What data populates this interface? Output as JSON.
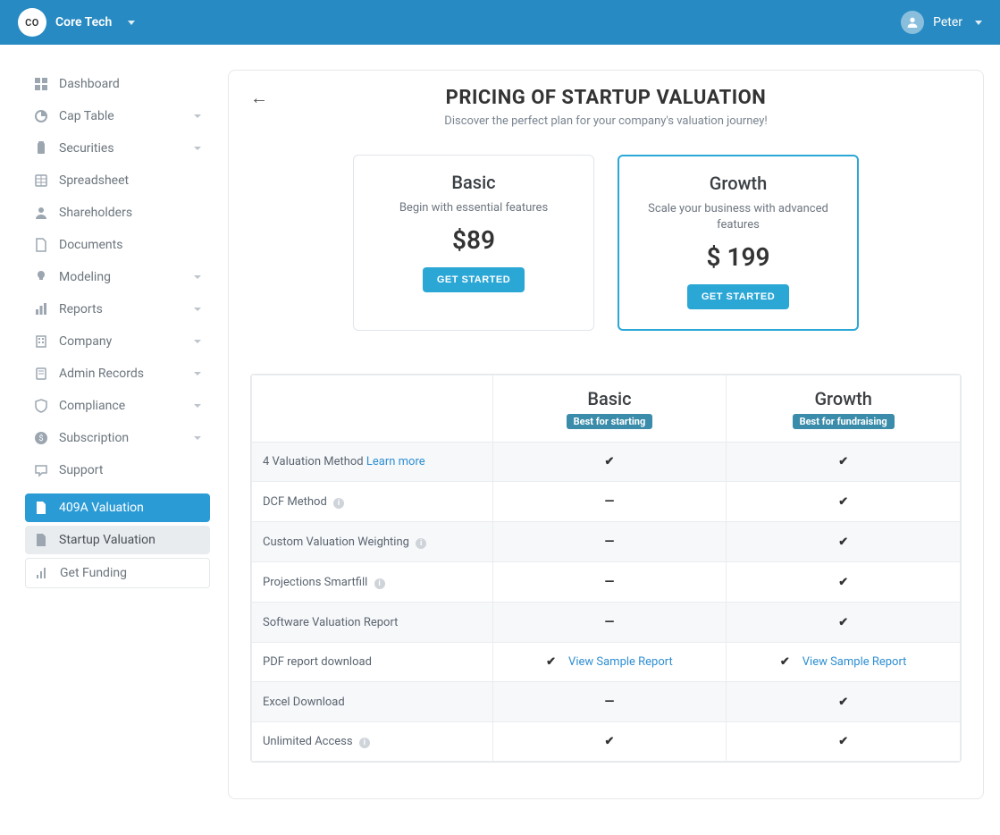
{
  "colors": {
    "topbar_bg": "#288ac2",
    "accent": "#2ba7d6",
    "text_muted": "#7a8590",
    "border": "#e5e8eb",
    "badge_bg": "#3a8caa",
    "link": "#2f8fd2"
  },
  "topbar": {
    "org_initials": "CO",
    "org_name": "Core Tech",
    "user_name": "Peter"
  },
  "sidebar": {
    "items": [
      {
        "key": "dashboard",
        "label": "Dashboard",
        "expandable": false
      },
      {
        "key": "cap-table",
        "label": "Cap Table",
        "expandable": true
      },
      {
        "key": "securities",
        "label": "Securities",
        "expandable": true
      },
      {
        "key": "spreadsheet",
        "label": "Spreadsheet",
        "expandable": false
      },
      {
        "key": "shareholders",
        "label": "Shareholders",
        "expandable": false
      },
      {
        "key": "documents",
        "label": "Documents",
        "expandable": false
      },
      {
        "key": "modeling",
        "label": "Modeling",
        "expandable": true
      },
      {
        "key": "reports",
        "label": "Reports",
        "expandable": true
      },
      {
        "key": "company",
        "label": "Company",
        "expandable": true
      },
      {
        "key": "admin-records",
        "label": "Admin Records",
        "expandable": true
      },
      {
        "key": "compliance",
        "label": "Compliance",
        "expandable": true
      },
      {
        "key": "subscription",
        "label": "Subscription",
        "expandable": true
      },
      {
        "key": "support",
        "label": "Support",
        "expandable": false
      }
    ],
    "bottom_items": [
      {
        "key": "409a",
        "label": "409A Valuation",
        "state": "active"
      },
      {
        "key": "startup-valuation",
        "label": "Startup Valuation",
        "state": "subactive"
      },
      {
        "key": "get-funding",
        "label": "Get Funding",
        "state": "none"
      }
    ]
  },
  "page": {
    "title": "PRICING OF STARTUP VALUATION",
    "subtitle": "Discover the perfect plan for your company's valuation journey!"
  },
  "plans": [
    {
      "key": "basic",
      "name": "Basic",
      "desc": "Begin with essential features",
      "price": "$89",
      "cta": "GET STARTED",
      "selected": false
    },
    {
      "key": "growth",
      "name": "Growth",
      "desc": "Scale your business with advanced features",
      "price": "$ 199",
      "cta": "GET STARTED",
      "selected": true
    }
  ],
  "compare": {
    "columns": [
      {
        "name": "Basic",
        "badge": "Best for starting"
      },
      {
        "name": "Growth",
        "badge": "Best for fundraising"
      }
    ],
    "rows": [
      {
        "label": "4 Valuation Method",
        "link": "Learn more",
        "info": false,
        "basic": "check",
        "growth": "check"
      },
      {
        "label": "DCF Method",
        "info": true,
        "basic": "minus",
        "growth": "check"
      },
      {
        "label": "Custom Valuation Weighting",
        "info": true,
        "basic": "minus",
        "growth": "check"
      },
      {
        "label": "Projections Smartfill",
        "info": true,
        "basic": "minus",
        "growth": "check"
      },
      {
        "label": "Software Valuation Report",
        "info": false,
        "basic": "minus",
        "growth": "check"
      },
      {
        "label": "PDF report download",
        "info": false,
        "basic": "check-link",
        "growth": "check-link",
        "link_text": "View Sample Report"
      },
      {
        "label": "Excel Download",
        "info": false,
        "basic": "minus",
        "growth": "check"
      },
      {
        "label": "Unlimited Access",
        "info": true,
        "basic": "check",
        "growth": "check"
      }
    ]
  }
}
